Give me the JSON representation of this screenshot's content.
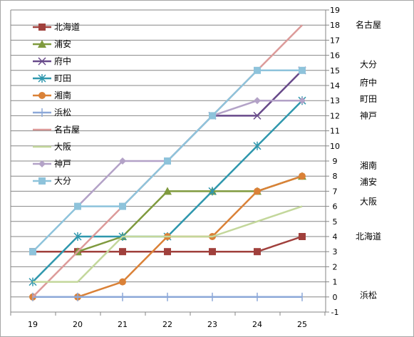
{
  "chart_data": {
    "type": "line",
    "x": [
      19,
      20,
      21,
      22,
      23,
      24,
      25
    ],
    "ylim": [
      -1,
      19
    ],
    "yticks": [
      -1,
      0,
      1,
      2,
      3,
      4,
      5,
      6,
      7,
      8,
      9,
      10,
      11,
      12,
      13,
      14,
      15,
      16,
      17,
      18,
      19
    ],
    "grid": "horizontal",
    "legend_position": "top-left",
    "series": [
      {
        "name": "北海道",
        "color": "#a0403c",
        "marker": "square",
        "values": [
          3,
          3,
          3,
          3,
          3,
          3,
          4
        ]
      },
      {
        "name": "浦安",
        "color": "#7f9a3e",
        "marker": "triangle",
        "values": [
          null,
          3,
          4,
          7,
          7,
          7,
          8
        ]
      },
      {
        "name": "府中",
        "color": "#684a8a",
        "marker": "x",
        "values": [
          null,
          null,
          null,
          null,
          12,
          12,
          15
        ]
      },
      {
        "name": "町田",
        "color": "#2f97ad",
        "marker": "star",
        "values": [
          1,
          4,
          4,
          4,
          7,
          10,
          13
        ]
      },
      {
        "name": "湘南",
        "color": "#da8137",
        "marker": "circle",
        "values": [
          0,
          0,
          1,
          4,
          4,
          7,
          8
        ]
      },
      {
        "name": "浜松",
        "color": "#8ca8d8",
        "marker": "plus",
        "values": [
          0,
          0,
          0,
          0,
          0,
          0,
          0
        ]
      },
      {
        "name": "名古屋",
        "color": "#dc9a99",
        "marker": "none",
        "values": [
          0,
          3,
          6,
          9,
          12,
          15,
          18
        ]
      },
      {
        "name": "大阪",
        "color": "#c3d79b",
        "marker": "none",
        "values": [
          1,
          1,
          4,
          4,
          4,
          5,
          6
        ]
      },
      {
        "name": "神戸",
        "color": "#b3a2c7",
        "marker": "diamond",
        "values": [
          null,
          6,
          9,
          9,
          12,
          13,
          13
        ]
      },
      {
        "name": "大分",
        "color": "#8ec3db",
        "marker": "square",
        "values": [
          3,
          6,
          6,
          9,
          12,
          15,
          15
        ]
      }
    ],
    "end_labels": [
      {
        "text": "名古屋",
        "y": 18.0
      },
      {
        "text": "大分",
        "y": 15.4
      },
      {
        "text": "府中",
        "y": 14.2
      },
      {
        "text": "町田",
        "y": 13.1
      },
      {
        "text": "神戸",
        "y": 12.0
      },
      {
        "text": "湘南",
        "y": 8.7
      },
      {
        "text": "浦安",
        "y": 7.6
      },
      {
        "text": "大阪",
        "y": 6.3
      },
      {
        "text": "北海道",
        "y": 4.0
      },
      {
        "text": "浜松",
        "y": 0.1
      }
    ]
  }
}
